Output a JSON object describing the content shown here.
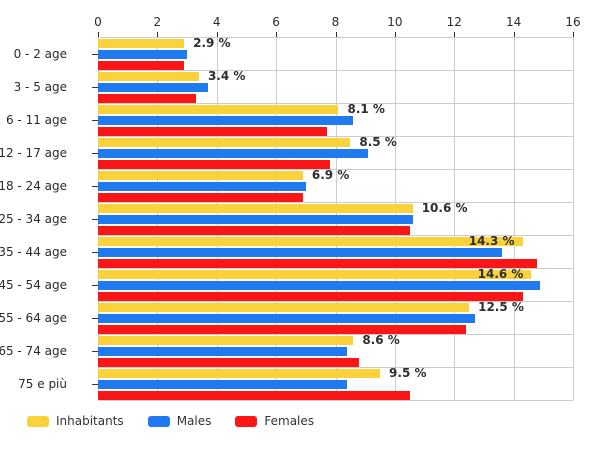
{
  "chart_data": {
    "type": "bar",
    "orientation": "horizontal",
    "title": "",
    "xlabel": "",
    "ylabel": "",
    "xlim": [
      0,
      16
    ],
    "x_ticks": [
      "0",
      "2",
      "4",
      "6",
      "8",
      "10",
      "12",
      "14",
      "16"
    ],
    "x_tick_values": [
      0,
      2,
      4,
      6,
      8,
      10,
      12,
      14,
      16
    ],
    "grid": true,
    "legend_position": "bottom",
    "categories": [
      "0 - 2 age",
      "3 - 5 age",
      "6 - 11 age",
      "12 - 17 age",
      "18 - 24 age",
      "25 - 34 age",
      "35 - 44 age",
      "45 - 54 age",
      "55 - 64 age",
      "65 - 74 age",
      "75 e più"
    ],
    "series": [
      {
        "name": "Inhabitants",
        "color": "#FAD23C",
        "values": [
          2.9,
          3.4,
          8.1,
          8.5,
          6.9,
          10.6,
          14.3,
          14.6,
          12.5,
          8.6,
          9.5
        ]
      },
      {
        "name": "Males",
        "color": "#1F7AF0",
        "values": [
          3.0,
          3.7,
          8.6,
          9.1,
          7.0,
          10.6,
          13.6,
          14.9,
          12.7,
          8.4,
          8.4
        ]
      },
      {
        "name": "Females",
        "color": "#FA1616",
        "values": [
          2.9,
          3.3,
          7.7,
          7.8,
          6.9,
          10.5,
          14.8,
          14.3,
          12.4,
          8.8,
          10.5
        ]
      }
    ],
    "value_labels": [
      "2.9 %",
      "3.4 %",
      "8.1 %",
      "8.5 %",
      "6.9 %",
      "10.6 %",
      "14.3 %",
      "14.6 %",
      "12.5 %",
      "8.6 %",
      "9.5 %"
    ]
  },
  "colors": {
    "gridline": "#cccccc",
    "axis_text": "#2b2b2b",
    "label_text": "#2e2e2e"
  },
  "legend": {
    "items": [
      {
        "label": "Inhabitants",
        "color": "#FAD23C"
      },
      {
        "label": "Males",
        "color": "#1F7AF0"
      },
      {
        "label": "Females",
        "color": "#FA1616"
      }
    ]
  }
}
